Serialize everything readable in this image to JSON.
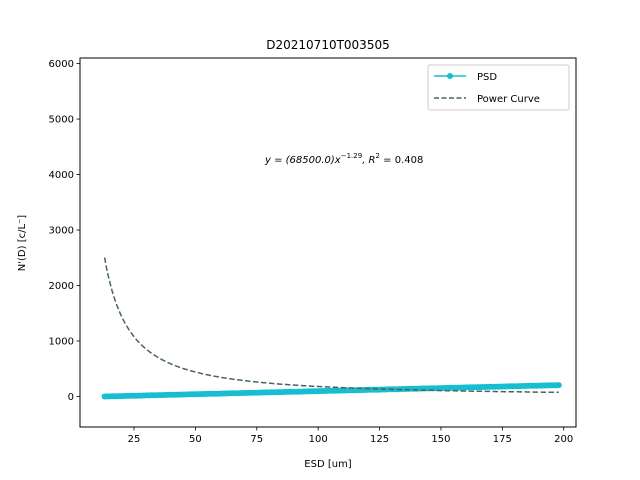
{
  "chart_data": {
    "type": "scatter",
    "title": "D20210710T003505",
    "xlabel": "ESD [um]",
    "ylabel": "N'(D) [c/L⁻]",
    "xlim": [
      3,
      205
    ],
    "ylim": [
      -550,
      6100
    ],
    "xticks": [
      25,
      50,
      75,
      100,
      125,
      150,
      175,
      200
    ],
    "yticks": [
      0,
      1000,
      2000,
      3000,
      4000,
      5000,
      6000
    ],
    "grid": false,
    "legend_position": "top-right",
    "annotation": {
      "text_prefix": "y = (68500.0)x",
      "exponent": "−1.29",
      "text_sep": ", R",
      "r2_sup": "2",
      "text_suffix": " = 0.408"
    },
    "series": [
      {
        "name": "PSD",
        "style": "line-marker",
        "color": "#17becf",
        "x_start": 13,
        "x_end": 198,
        "x_step": 1,
        "y_start": 0,
        "y_end": 205
      },
      {
        "name": "Power Curve",
        "style": "dashed",
        "color": "#4a6363",
        "x_start": 13,
        "x_end": 198,
        "coefficient": 68500.0,
        "exponent": -1.29
      }
    ]
  }
}
